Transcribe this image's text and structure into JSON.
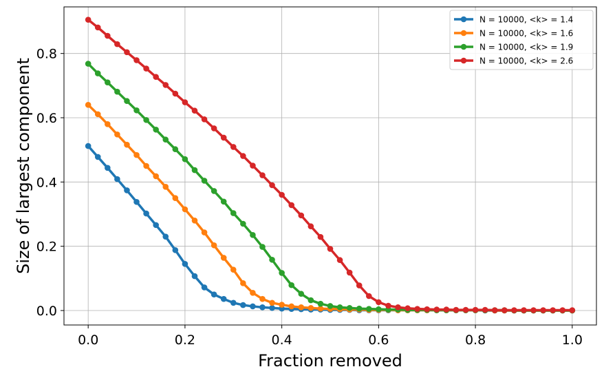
{
  "chart_data": {
    "type": "line",
    "title": "",
    "xlabel": "Fraction removed",
    "ylabel": "Size of largest component",
    "xlim": [
      -0.05,
      1.05
    ],
    "ylim": [
      -0.045,
      0.945
    ],
    "xticks": [
      0.0,
      0.2,
      0.4,
      0.6,
      0.8,
      1.0
    ],
    "xtick_labels": [
      "0.0",
      "0.2",
      "0.4",
      "0.6",
      "0.8",
      "1.0"
    ],
    "yticks": [
      0.0,
      0.2,
      0.4,
      0.6,
      0.8
    ],
    "ytick_labels": [
      "0.0",
      "0.2",
      "0.4",
      "0.6",
      "0.8"
    ],
    "grid": true,
    "legend_position": "top-right",
    "x": [
      0.0,
      0.02,
      0.04,
      0.06,
      0.08,
      0.1,
      0.12,
      0.14,
      0.16,
      0.18,
      0.2,
      0.22,
      0.24,
      0.26,
      0.28,
      0.3,
      0.32,
      0.34,
      0.36,
      0.38,
      0.4,
      0.42,
      0.44,
      0.46,
      0.48,
      0.5,
      0.52,
      0.54,
      0.56,
      0.58,
      0.6,
      0.62,
      0.64,
      0.66,
      0.68,
      0.7,
      0.72,
      0.74,
      0.76,
      0.78,
      0.8,
      0.82,
      0.84,
      0.86,
      0.88,
      0.9,
      0.92,
      0.94,
      0.96,
      0.98,
      1.0
    ],
    "series": [
      {
        "name": "N = 10000, <k> = 1.4",
        "color": "#1f77b4",
        "values": [
          0.512,
          0.478,
          0.444,
          0.409,
          0.374,
          0.338,
          0.302,
          0.266,
          0.23,
          0.188,
          0.145,
          0.107,
          0.072,
          0.05,
          0.036,
          0.024,
          0.017,
          0.013,
          0.01,
          0.008,
          0.006,
          0.005,
          0.004,
          0.003,
          0.003,
          0.002,
          0.002,
          0.002,
          0.001,
          0.001,
          0.001,
          0.001,
          0.001,
          0.001,
          0.001,
          0.001,
          0.001,
          0.001,
          0.001,
          0.001,
          0.001,
          0.0,
          0.0,
          0.0,
          0.0,
          0.0,
          0.0,
          0.0,
          0.0,
          0.0,
          0.0
        ]
      },
      {
        "name": "N = 10000, <k> = 1.6",
        "color": "#ff7f0e",
        "values": [
          0.64,
          0.611,
          0.58,
          0.548,
          0.516,
          0.484,
          0.45,
          0.418,
          0.385,
          0.35,
          0.315,
          0.28,
          0.243,
          0.203,
          0.164,
          0.127,
          0.085,
          0.055,
          0.036,
          0.024,
          0.018,
          0.013,
          0.01,
          0.008,
          0.006,
          0.005,
          0.004,
          0.003,
          0.003,
          0.002,
          0.002,
          0.002,
          0.001,
          0.001,
          0.001,
          0.001,
          0.001,
          0.001,
          0.001,
          0.001,
          0.001,
          0.001,
          0.0,
          0.0,
          0.0,
          0.0,
          0.0,
          0.0,
          0.0,
          0.0,
          0.0
        ]
      },
      {
        "name": "N = 10000, <k> = 1.9",
        "color": "#2ca02c",
        "values": [
          0.768,
          0.738,
          0.71,
          0.681,
          0.652,
          0.623,
          0.593,
          0.563,
          0.532,
          0.502,
          0.471,
          0.437,
          0.404,
          0.372,
          0.339,
          0.303,
          0.27,
          0.235,
          0.198,
          0.158,
          0.117,
          0.079,
          0.052,
          0.032,
          0.021,
          0.014,
          0.01,
          0.008,
          0.006,
          0.005,
          0.004,
          0.003,
          0.003,
          0.002,
          0.002,
          0.002,
          0.001,
          0.001,
          0.001,
          0.001,
          0.001,
          0.001,
          0.001,
          0.001,
          0.0,
          0.0,
          0.0,
          0.0,
          0.0,
          0.0,
          0.0
        ]
      },
      {
        "name": "N = 10000, <k> = 2.6",
        "color": "#d62728",
        "values": [
          0.905,
          0.881,
          0.855,
          0.829,
          0.804,
          0.779,
          0.753,
          0.727,
          0.702,
          0.675,
          0.648,
          0.622,
          0.595,
          0.567,
          0.538,
          0.509,
          0.481,
          0.451,
          0.421,
          0.39,
          0.36,
          0.328,
          0.296,
          0.262,
          0.229,
          0.192,
          0.157,
          0.118,
          0.078,
          0.045,
          0.026,
          0.015,
          0.01,
          0.007,
          0.005,
          0.004,
          0.003,
          0.003,
          0.002,
          0.002,
          0.002,
          0.002,
          0.001,
          0.001,
          0.001,
          0.001,
          0.001,
          0.001,
          0.001,
          0.001,
          0.001
        ]
      }
    ]
  }
}
